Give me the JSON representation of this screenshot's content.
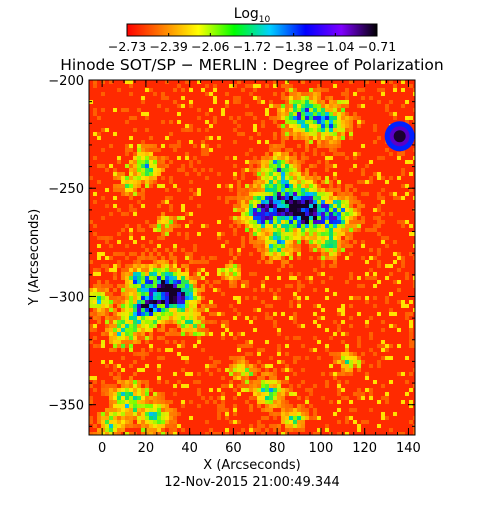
{
  "colorbar": {
    "label": "Log",
    "label_subscript": "10",
    "tick_labels": [
      "−2.73",
      "−2.39",
      "−2.06",
      "−1.72",
      "−1.38",
      "−1.04",
      "−0.71"
    ],
    "min": -2.73,
    "max": -0.71,
    "colors": [
      "#ff0000",
      "#ff7f00",
      "#ffff00",
      "#00ff00",
      "#00d0ff",
      "#0000ff",
      "#7f00ff",
      "#000000"
    ]
  },
  "chart_data": {
    "type": "heatmap",
    "title": "Hinode SOT/SP − MERLIN : Degree of Polarization",
    "xlabel": "X (Arcseconds)",
    "ylabel": "Y (Arcseconds)",
    "xlim": [
      -6,
      143
    ],
    "ylim": [
      -364,
      -200
    ],
    "x_ticks": [
      0,
      20,
      40,
      60,
      80,
      100,
      120,
      140
    ],
    "y_ticks": [
      -200,
      -250,
      -300,
      -350
    ],
    "x_tick_labels": [
      "0",
      "20",
      "40",
      "60",
      "80",
      "100",
      "120",
      "140"
    ],
    "y_tick_labels": [
      "−200",
      "−250",
      "−300",
      "−350"
    ],
    "value_scale": "log10",
    "value_range": [
      -2.73,
      -0.71
    ],
    "timestamp": "12-Nov-2015 21:00:49.344"
  }
}
